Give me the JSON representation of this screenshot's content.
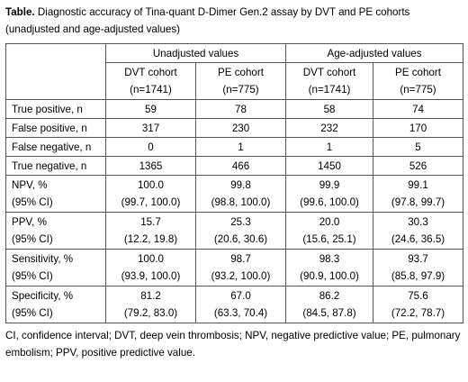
{
  "caption": {
    "label": "Table.",
    "text": " Diagnostic accuracy of Tina-quant D-Dimer Gen.2 assay by DVT and PE cohorts (unadjusted and age-adjusted values)"
  },
  "groups": [
    "Unadjusted values",
    "Age-adjusted values"
  ],
  "cohorts": [
    {
      "name": "DVT cohort",
      "n": "(n=1741)"
    },
    {
      "name": "PE cohort",
      "n": "(n=775)"
    },
    {
      "name": "DVT cohort",
      "n": "(n=1741)"
    },
    {
      "name": "PE cohort",
      "n": "(n=775)"
    }
  ],
  "counts": [
    {
      "label": "True positive, n",
      "values": [
        "59",
        "78",
        "58",
        "74"
      ]
    },
    {
      "label": "False positive, n",
      "values": [
        "317",
        "230",
        "232",
        "170"
      ]
    },
    {
      "label": "False negative, n",
      "values": [
        "0",
        "1",
        "1",
        "5"
      ]
    },
    {
      "label": "True negative, n",
      "values": [
        "1365",
        "466",
        "1450",
        "526"
      ]
    }
  ],
  "metrics": [
    {
      "label": "NPV, %",
      "sub": "(95% CI)",
      "values": [
        "100.0",
        "99.8",
        "99.9",
        "99.1"
      ],
      "ci": [
        "(99.7, 100.0)",
        "(98.8, 100.0)",
        "(99.6, 100.0)",
        "(97.8, 99.7)"
      ]
    },
    {
      "label": "PPV, %",
      "sub": "(95% CI)",
      "values": [
        "15.7",
        "25.3",
        "20.0",
        "30.3"
      ],
      "ci": [
        "(12.2, 19.8)",
        "(20.6, 30.6)",
        "(15.6, 25.1)",
        "(24.6, 36.5)"
      ]
    },
    {
      "label": "Sensitivity, %",
      "sub": "(95% CI)",
      "values": [
        "100.0",
        "98.7",
        "98.3",
        "93.7"
      ],
      "ci": [
        "(93.9, 100.0)",
        "(93.2, 100.0)",
        "(90.9, 100.0)",
        "(85.8, 97.9)"
      ]
    },
    {
      "label": "Specificity, %",
      "sub": "(95% CI)",
      "values": [
        "81.2",
        "67.0",
        "86.2",
        "75.6"
      ],
      "ci": [
        "(79.2, 83.0)",
        "(63.3, 70.4)",
        "(84.5, 87.8)",
        "(72.2, 78.7)"
      ]
    }
  ],
  "footnote": "CI, confidence interval; DVT, deep vein thrombosis; NPV, negative predictive value; PE, pulmonary embolism; PPV, positive predictive value."
}
